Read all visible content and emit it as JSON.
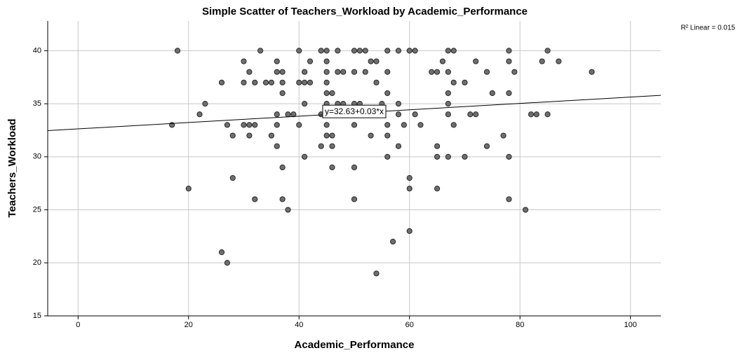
{
  "chart_data": {
    "type": "scatter",
    "title": "Simple Scatter of Teachers_Workload by Academic_Performance",
    "x_label": "Academic_Performance",
    "y_label": "Teachers_Workload",
    "fit_label": "y=32.63+0.03*x",
    "r2_label": "R² Linear = 0.015",
    "fit": {
      "intercept": 32.63,
      "slope": 0.03
    },
    "color": "#6e6e6e",
    "grid": true,
    "xlim": [
      -5.5,
      105.5
    ],
    "ylim": [
      15,
      42.8
    ],
    "xticks": [
      0,
      20,
      40,
      60,
      80,
      100
    ],
    "yticks": [
      15,
      20,
      25,
      30,
      35,
      40
    ],
    "x": [
      18,
      33,
      40,
      44,
      45,
      47,
      50,
      51,
      52,
      56,
      58,
      60,
      61,
      67,
      68,
      78,
      85,
      30,
      36,
      42,
      45,
      53,
      54,
      66,
      72,
      78,
      84,
      87,
      31,
      36,
      37,
      41,
      45,
      47,
      48,
      50,
      52,
      56,
      64,
      65,
      67,
      74,
      79,
      93,
      26,
      30,
      32,
      34,
      35,
      37,
      40,
      41,
      42,
      45,
      54,
      68,
      70,
      37,
      45,
      46,
      56,
      67,
      75,
      78,
      23,
      41,
      45,
      47,
      48,
      50,
      51,
      55,
      58,
      67,
      22,
      36,
      38,
      39,
      44,
      49,
      58,
      61,
      67,
      71,
      72,
      82,
      83,
      85,
      17,
      27,
      30,
      31,
      32,
      36,
      40,
      45,
      50,
      56,
      59,
      62,
      68,
      28,
      31,
      35,
      45,
      46,
      53,
      56,
      77,
      36,
      44,
      46,
      58,
      65,
      74,
      41,
      56,
      65,
      67,
      70,
      78,
      37,
      46,
      50,
      28,
      60,
      20,
      60,
      65,
      32,
      37,
      50,
      78,
      38,
      81,
      60,
      57,
      26,
      27,
      54
    ],
    "values": [
      40,
      40,
      40,
      40,
      40,
      40,
      40,
      40,
      40,
      40,
      40,
      40,
      40,
      40,
      40,
      40,
      40,
      39,
      39,
      39,
      39,
      39,
      39,
      39,
      39,
      39,
      39,
      39,
      38,
      38,
      38,
      38,
      38,
      38,
      38,
      38,
      38,
      38,
      38,
      38,
      38,
      38,
      38,
      38,
      37,
      37,
      37,
      37,
      37,
      37,
      37,
      37,
      37,
      37,
      37,
      37,
      37,
      36,
      36,
      36,
      36,
      36,
      36,
      36,
      35,
      35,
      35,
      35,
      35,
      35,
      35,
      35,
      35,
      35,
      34,
      34,
      34,
      34,
      34,
      34,
      34,
      34,
      34,
      34,
      34,
      34,
      34,
      34,
      33,
      33,
      33,
      33,
      33,
      33,
      33,
      33,
      33,
      33,
      33,
      33,
      33,
      32,
      32,
      32,
      32,
      32,
      32,
      32,
      32,
      31,
      31,
      31,
      31,
      31,
      31,
      30,
      30,
      30,
      30,
      30,
      30,
      29,
      29,
      29,
      28,
      28,
      27,
      27,
      27,
      26,
      26,
      26,
      26,
      25,
      25,
      23,
      22,
      21,
      20,
      19
    ]
  }
}
